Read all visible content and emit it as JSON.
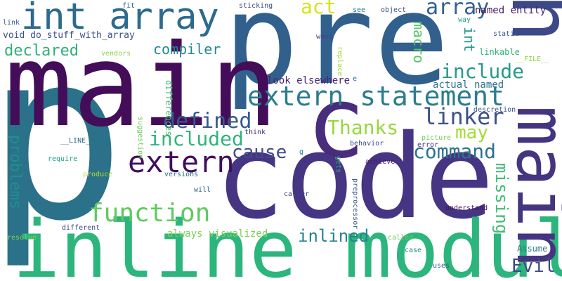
{
  "words": [
    {
      "id": "p",
      "text": "p",
      "color": "#2a7189"
    },
    {
      "id": "pre",
      "text": "pre",
      "color": "#31608d"
    },
    {
      "id": "main-big",
      "text": "main",
      "color": "#440d59"
    },
    {
      "id": "code-big",
      "text": "code",
      "color": "#463582"
    },
    {
      "id": "inline-module",
      "text": "inline module",
      "color": "#2cb57d"
    },
    {
      "id": "c",
      "text": "c",
      "color": "#472d7b"
    },
    {
      "id": "main-vert",
      "text": "main",
      "color": "#45347f"
    },
    {
      "id": "h",
      "text": "h",
      "color": "#3d4987"
    },
    {
      "id": "int-array",
      "text": "int array",
      "color": "#2d6a8e"
    },
    {
      "id": "extern-statement",
      "text": "extern statement",
      "color": "#2b7d8d"
    },
    {
      "id": "extern",
      "text": "extern",
      "color": "#420e5e"
    },
    {
      "id": "function",
      "text": "function",
      "color": "#60c95f"
    },
    {
      "id": "defined",
      "text": "defined",
      "color": "#35598c"
    },
    {
      "id": "included",
      "text": "included",
      "color": "#2fb47a"
    },
    {
      "id": "cause",
      "text": "cause",
      "color": "#3f4a89"
    },
    {
      "id": "command",
      "text": "command",
      "color": "#2c728e"
    },
    {
      "id": "linker",
      "text": "linker",
      "color": "#3b5289"
    },
    {
      "id": "thanks",
      "text": "Thanks",
      "color": "#97d83f"
    },
    {
      "id": "may",
      "text": "may",
      "color": "#a6db35"
    },
    {
      "id": "include",
      "text": "include",
      "color": "#27998a"
    },
    {
      "id": "array",
      "text": "array",
      "color": "#34628d"
    },
    {
      "id": "act",
      "text": "act",
      "color": "#d9e319"
    },
    {
      "id": "evil",
      "text": "Evil",
      "color": "#3e4889"
    },
    {
      "id": "inlined",
      "text": "inlined",
      "color": "#25848e"
    },
    {
      "id": "declared",
      "text": "declared",
      "color": "#30b17a"
    },
    {
      "id": "compiler",
      "text": "compiler",
      "color": "#23898e"
    },
    {
      "id": "problems",
      "text": "problems",
      "color": "#218f8d"
    },
    {
      "id": "missing",
      "text": "missing",
      "color": "#42bb72"
    },
    {
      "id": "macro",
      "text": "macro",
      "color": "#55c667"
    },
    {
      "id": "int-vert",
      "text": "int",
      "color": "#21998a"
    },
    {
      "id": "void-do-stuff",
      "text": "void do_stuff_with_array",
      "color": "#3d4e8a"
    },
    {
      "id": "look-elsewhere",
      "text": "look elsewhere",
      "color": "#482576"
    },
    {
      "id": "actual-named",
      "text": "actual named",
      "color": "#2d718e"
    },
    {
      "id": "named-entity",
      "text": "named entity",
      "color": "#48186a"
    },
    {
      "id": "always-visualized",
      "text": "always visualized",
      "color": "#7ad151"
    },
    {
      "id": "differences",
      "text": "differences",
      "color": "#46c06f"
    },
    {
      "id": "suggestion",
      "text": "suggestion",
      "color": "#6ccd5a"
    },
    {
      "id": "linkable",
      "text": "linkable",
      "color": "#2db27d"
    },
    {
      "id": "assume",
      "text": "Assume",
      "color": "#2a778e"
    },
    {
      "id": "file",
      "text": "__FILE__",
      "color": "#90d743"
    },
    {
      "id": "line",
      "text": "__LINE__",
      "color": "#2f6c8e"
    },
    {
      "id": "sticking",
      "text": "sticking",
      "color": "#3e4a89"
    },
    {
      "id": "fit",
      "text": "fit",
      "color": "#35608d"
    },
    {
      "id": "object",
      "text": "object",
      "color": "#3b518b"
    },
    {
      "id": "see",
      "text": "see",
      "color": "#287c8e"
    },
    {
      "id": "way",
      "text": "way",
      "color": "#1fa187"
    },
    {
      "id": "static",
      "text": "static",
      "color": "#39568c"
    },
    {
      "id": "link",
      "text": "link",
      "color": "#355f8d"
    },
    {
      "id": "vendors",
      "text": "vendors",
      "color": "#8bd646"
    },
    {
      "id": "want",
      "text": "want",
      "color": "#404588"
    },
    {
      "id": "replace",
      "text": "replace",
      "color": "#a5db36"
    },
    {
      "id": "e",
      "text": "e",
      "color": "#2d708e"
    },
    {
      "id": "descretion",
      "text": "descretion",
      "color": "#3a548c"
    },
    {
      "id": "think",
      "text": "think",
      "color": "#472a7a"
    },
    {
      "id": "g",
      "text": "g",
      "color": "#25838e"
    },
    {
      "id": "picture",
      "text": "picture",
      "color": "#70cf57"
    },
    {
      "id": "error",
      "text": "error",
      "color": "#46337f"
    },
    {
      "id": "behavior",
      "text": "behavior",
      "color": "#3d4d8a"
    },
    {
      "id": "require",
      "text": "require",
      "color": "#20a486"
    },
    {
      "id": "produce",
      "text": "produce",
      "color": "#b5de2b"
    },
    {
      "id": "versions",
      "text": "versions",
      "color": "#2e6f8e"
    },
    {
      "id": "gets",
      "text": "gets",
      "color": "#2db27d"
    },
    {
      "id": "achieve",
      "text": "achieve",
      "color": "#481769"
    },
    {
      "id": "will",
      "text": "will",
      "color": "#31688e"
    },
    {
      "id": "caller",
      "text": "caller",
      "color": "#414487"
    },
    {
      "id": "preprocessor",
      "text": "preprocessor",
      "color": "#3b528b"
    },
    {
      "id": "understand",
      "text": "understand",
      "color": "#471164"
    },
    {
      "id": "different",
      "text": "different",
      "color": "#3e4989"
    },
    {
      "id": "resolve",
      "text": "resolve",
      "color": "#7fd34e"
    },
    {
      "id": "called",
      "text": "called",
      "color": "#6ece58"
    },
    {
      "id": "case",
      "text": "case",
      "color": "#24878e"
    },
    {
      "id": "uses",
      "text": "uses",
      "color": "#33638d"
    }
  ]
}
